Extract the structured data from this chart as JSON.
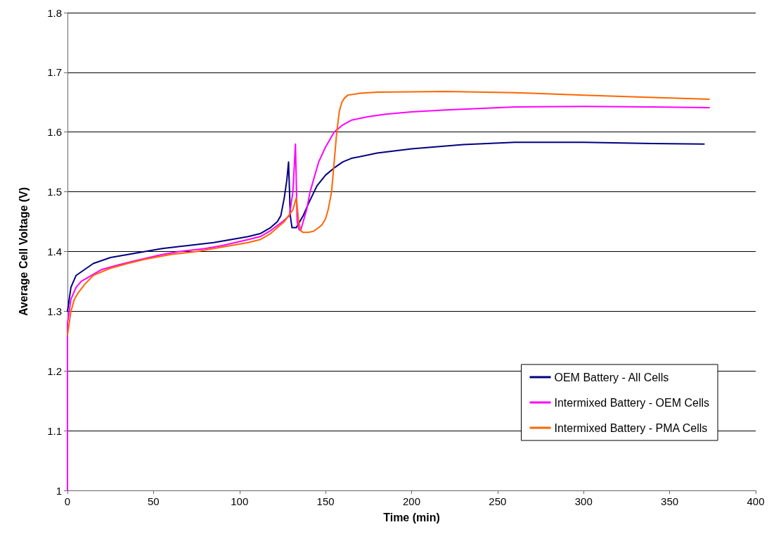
{
  "chart_data": {
    "type": "line",
    "xlabel": "Time (min)",
    "ylabel": "Average Cell Voltage (V)",
    "xlim": [
      0,
      400
    ],
    "xticks": [
      0,
      50,
      100,
      150,
      200,
      250,
      300,
      350,
      400
    ],
    "ylim": [
      1,
      1.8
    ],
    "yticks": [
      1,
      1.1,
      1.2,
      1.3,
      1.4,
      1.5,
      1.6,
      1.7,
      1.8
    ],
    "grid": "y",
    "legend": "bottom right",
    "marker": "none",
    "line_style": "solid",
    "series": [
      {
        "name": "OEM Battery - All Cells",
        "color": "#000080",
        "x": [
          0,
          1,
          2,
          5,
          10,
          15,
          25,
          35,
          45,
          55,
          70,
          85,
          95,
          105,
          112,
          118,
          122,
          124,
          126,
          127.5,
          128.5,
          129.5,
          130.5,
          133,
          135,
          137,
          140,
          145,
          150,
          155,
          160,
          165,
          180,
          200,
          230,
          260,
          300,
          340,
          370
        ],
        "values": [
          1.3,
          1.32,
          1.34,
          1.36,
          1.37,
          1.38,
          1.39,
          1.395,
          1.4,
          1.405,
          1.41,
          1.415,
          1.42,
          1.425,
          1.43,
          1.44,
          1.45,
          1.46,
          1.49,
          1.52,
          1.55,
          1.46,
          1.44,
          1.44,
          1.45,
          1.46,
          1.48,
          1.51,
          1.528,
          1.54,
          1.55,
          1.556,
          1.565,
          1.572,
          1.579,
          1.583,
          1.583,
          1.581,
          1.58
        ]
      },
      {
        "name": "Intermixed Battery - OEM Cells",
        "color": "#ff00ff",
        "x": [
          0,
          0,
          1,
          2,
          5,
          8,
          14,
          20,
          30,
          40,
          55,
          65,
          80,
          90,
          105,
          112,
          118,
          125,
          129,
          131,
          132.5,
          133.5,
          134.5,
          135.5,
          137,
          139,
          141,
          143,
          146,
          150,
          155,
          160,
          165,
          175,
          185,
          200,
          220,
          260,
          300,
          340,
          373
        ],
        "values": [
          1,
          1.28,
          1.3,
          1.32,
          1.34,
          1.35,
          1.36,
          1.37,
          1.378,
          1.385,
          1.395,
          1.4,
          1.405,
          1.41,
          1.42,
          1.425,
          1.435,
          1.45,
          1.46,
          1.5,
          1.58,
          1.45,
          1.437,
          1.435,
          1.45,
          1.47,
          1.5,
          1.52,
          1.55,
          1.575,
          1.6,
          1.612,
          1.62,
          1.626,
          1.63,
          1.634,
          1.637,
          1.642,
          1.643,
          1.642,
          1.641
        ]
      },
      {
        "name": "Intermixed Battery - PMA Cells",
        "color": "#ff6600",
        "x": [
          0,
          1,
          2,
          4,
          6,
          10,
          15,
          25,
          35,
          45,
          60,
          75,
          85,
          95,
          105,
          112,
          118,
          126,
          131,
          133,
          134.4,
          135.5,
          137,
          140,
          143,
          146,
          148,
          150,
          151.5,
          152.5,
          153.5,
          155,
          156.5,
          158,
          159.5,
          161,
          163,
          170,
          180,
          220,
          260,
          300,
          340,
          373
        ],
        "values": [
          1.26,
          1.28,
          1.3,
          1.32,
          1.33,
          1.345,
          1.36,
          1.372,
          1.38,
          1.387,
          1.395,
          1.4,
          1.405,
          1.41,
          1.415,
          1.42,
          1.43,
          1.45,
          1.47,
          1.49,
          1.45,
          1.435,
          1.432,
          1.432,
          1.434,
          1.44,
          1.445,
          1.455,
          1.47,
          1.485,
          1.5,
          1.55,
          1.6,
          1.635,
          1.65,
          1.657,
          1.662,
          1.665,
          1.667,
          1.668,
          1.666,
          1.662,
          1.658,
          1.655
        ]
      }
    ]
  }
}
